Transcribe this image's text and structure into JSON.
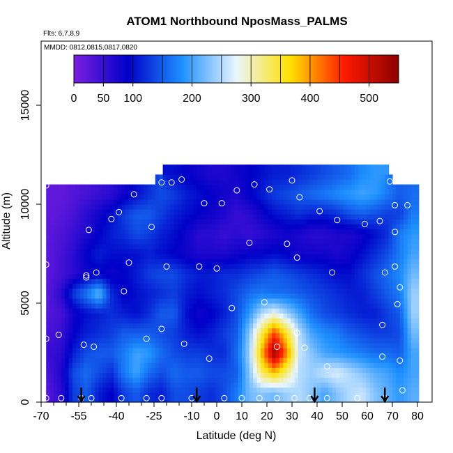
{
  "chart_data": {
    "type": "heatmap",
    "title": "ATOM1 Northbound NposMass_PALMS",
    "subtitle_flights": "Flts: 6,7,8,9",
    "subtitle_dates": "MMDD: 0812,0815,0817,0820",
    "xlabel": "Latitude (deg N)",
    "ylabel": "Altitude (m)",
    "xlim": [
      -70,
      80
    ],
    "ylim": [
      0,
      17500
    ],
    "x_ticks": [
      -70,
      -55,
      -40,
      -25,
      -10,
      0,
      10,
      20,
      30,
      40,
      50,
      60,
      70,
      80
    ],
    "x_tick_labels": [
      "-70",
      "-55",
      "-40",
      "-25",
      "-10",
      "0",
      "10",
      "20",
      "30",
      "40",
      "50",
      "60",
      "70",
      "80"
    ],
    "x_minor_ticks": [
      -65,
      -60,
      -50,
      -45,
      -35,
      -30,
      -20,
      -15,
      -5
    ],
    "y_ticks": [
      0,
      5000,
      10000,
      15000
    ],
    "y_tick_labels": [
      "0",
      "5000",
      "10000",
      "15000"
    ],
    "colorbar": {
      "range": [
        0,
        550
      ],
      "ticks": [
        0,
        50,
        100,
        200,
        300,
        400,
        500
      ],
      "tick_labels": [
        "0",
        "50",
        "100",
        "200",
        "300",
        "400",
        "500"
      ],
      "stops": [
        "#7b1fe0",
        "#0000c8",
        "#1e90ff",
        "#eaf6ff",
        "#ffe100",
        "#ff1a00",
        "#8b0000"
      ]
    },
    "value_grid": {
      "lat": [
        -67,
        -62,
        -57,
        -52,
        -47,
        -42,
        -37,
        -32,
        -27,
        -22,
        -17,
        -12,
        -7,
        -2,
        3,
        8,
        13,
        18,
        23,
        28,
        33,
        38,
        43,
        48,
        53,
        58,
        63,
        68,
        73,
        78
      ],
      "alt": [
        500,
        1500,
        2500,
        3500,
        4500,
        5500,
        6500,
        7500,
        8500,
        9500,
        10500,
        11500
      ],
      "values": [
        [
          30,
          60,
          130,
          150,
          110,
          90,
          130,
          150,
          120,
          110,
          140,
          140,
          130,
          120,
          140,
          170,
          220,
          230,
          220,
          240,
          250,
          230,
          200,
          230,
          250,
          260,
          230,
          210,
          190,
          210
        ],
        [
          40,
          70,
          140,
          160,
          140,
          120,
          170,
          200,
          160,
          140,
          160,
          150,
          150,
          140,
          140,
          150,
          230,
          330,
          380,
          320,
          250,
          240,
          260,
          270,
          250,
          230,
          210,
          200,
          180,
          200
        ],
        [
          50,
          60,
          110,
          140,
          150,
          150,
          170,
          200,
          190,
          160,
          140,
          130,
          130,
          120,
          120,
          160,
          240,
          390,
          540,
          410,
          260,
          230,
          200,
          190,
          180,
          170,
          160,
          160,
          150,
          200
        ],
        [
          40,
          50,
          90,
          110,
          120,
          130,
          150,
          150,
          150,
          140,
          130,
          110,
          100,
          110,
          130,
          150,
          230,
          340,
          440,
          350,
          250,
          200,
          180,
          170,
          150,
          140,
          130,
          130,
          140,
          220
        ],
        [
          30,
          40,
          80,
          100,
          110,
          120,
          110,
          100,
          120,
          150,
          150,
          100,
          80,
          90,
          110,
          140,
          190,
          250,
          280,
          240,
          200,
          160,
          140,
          130,
          120,
          110,
          110,
          130,
          150,
          240
        ],
        [
          30,
          60,
          130,
          170,
          220,
          120,
          90,
          100,
          110,
          120,
          130,
          110,
          100,
          110,
          120,
          140,
          160,
          170,
          160,
          160,
          150,
          140,
          130,
          120,
          110,
          110,
          130,
          150,
          170,
          240
        ],
        [
          25,
          40,
          60,
          80,
          90,
          80,
          90,
          110,
          130,
          140,
          140,
          120,
          110,
          110,
          120,
          120,
          130,
          140,
          150,
          140,
          130,
          120,
          110,
          100,
          100,
          120,
          140,
          160,
          180,
          220
        ],
        [
          25,
          40,
          60,
          90,
          110,
          100,
          100,
          100,
          110,
          100,
          90,
          80,
          70,
          70,
          70,
          80,
          90,
          90,
          100,
          90,
          80,
          80,
          80,
          70,
          80,
          100,
          120,
          140,
          170,
          200
        ],
        [
          25,
          35,
          50,
          70,
          90,
          110,
          120,
          140,
          130,
          110,
          100,
          80,
          60,
          60,
          50,
          60,
          50,
          60,
          70,
          80,
          70,
          60,
          60,
          70,
          70,
          80,
          100,
          120,
          170,
          190
        ],
        [
          20,
          25,
          40,
          60,
          80,
          100,
          130,
          150,
          150,
          130,
          110,
          100,
          90,
          80,
          70,
          50,
          60,
          80,
          100,
          110,
          120,
          110,
          110,
          120,
          140,
          150,
          140,
          130,
          130,
          170
        ],
        [
          20,
          20,
          30,
          40,
          50,
          60,
          80,
          100,
          120,
          140,
          130,
          110,
          100,
          90,
          80,
          70,
          90,
          110,
          130,
          140,
          150,
          160,
          170,
          180,
          190,
          200,
          190,
          170,
          150,
          160
        ],
        [
          null,
          null,
          null,
          null,
          null,
          null,
          null,
          null,
          null,
          null,
          100,
          90,
          80,
          70,
          70,
          80,
          90,
          100,
          110,
          110,
          120,
          130,
          140,
          150,
          160,
          180,
          190,
          null,
          null,
          null
        ]
      ]
    },
    "sample_points": [
      {
        "lat": -68,
        "alt": 200
      },
      {
        "lat": -62,
        "alt": 200
      },
      {
        "lat": -54,
        "alt": 200
      },
      {
        "lat": -50,
        "alt": 200
      },
      {
        "lat": -38,
        "alt": 200
      },
      {
        "lat": -28,
        "alt": 200
      },
      {
        "lat": -22,
        "alt": 200
      },
      {
        "lat": -10,
        "alt": 200
      },
      {
        "lat": 3,
        "alt": 200
      },
      {
        "lat": 10,
        "alt": 200
      },
      {
        "lat": 17,
        "alt": 200
      },
      {
        "lat": 24,
        "alt": 200
      },
      {
        "lat": 31,
        "alt": 200
      },
      {
        "lat": 37,
        "alt": 200
      },
      {
        "lat": 44,
        "alt": 200
      },
      {
        "lat": 56,
        "alt": 200
      },
      {
        "lat": 67,
        "alt": 200
      },
      {
        "lat": 74,
        "alt": 600
      },
      {
        "lat": -68,
        "alt": 3200
      },
      {
        "lat": -63,
        "alt": 3400
      },
      {
        "lat": -53,
        "alt": 2900
      },
      {
        "lat": -49,
        "alt": 2800
      },
      {
        "lat": -28,
        "alt": 3200
      },
      {
        "lat": -22,
        "alt": 3700
      },
      {
        "lat": -13,
        "alt": 2950
      },
      {
        "lat": -3,
        "alt": 2200
      },
      {
        "lat": 24,
        "alt": 2800
      },
      {
        "lat": 32,
        "alt": 3500
      },
      {
        "lat": 35,
        "alt": 2750
      },
      {
        "lat": 44,
        "alt": 1800
      },
      {
        "lat": 66,
        "alt": 3900
      },
      {
        "lat": 66,
        "alt": 2300
      },
      {
        "lat": 73,
        "alt": 2100
      },
      {
        "lat": -68,
        "alt": 6950
      },
      {
        "lat": -52,
        "alt": 6400
      },
      {
        "lat": -48,
        "alt": 6550
      },
      {
        "lat": -37,
        "alt": 5600
      },
      {
        "lat": -35,
        "alt": 7050
      },
      {
        "lat": -20,
        "alt": 6850
      },
      {
        "lat": -7,
        "alt": 6850
      },
      {
        "lat": 0,
        "alt": 6750
      },
      {
        "lat": 6,
        "alt": 4750
      },
      {
        "lat": 19,
        "alt": 5050
      },
      {
        "lat": 32,
        "alt": 7300
      },
      {
        "lat": 46,
        "alt": 6550
      },
      {
        "lat": 67,
        "alt": 6550
      },
      {
        "lat": 71,
        "alt": 6850
      },
      {
        "lat": 72,
        "alt": 4950
      },
      {
        "lat": 73,
        "alt": 5800
      },
      {
        "lat": -52,
        "alt": 6300
      },
      {
        "lat": -51,
        "alt": 8700
      },
      {
        "lat": -42,
        "alt": 9250
      },
      {
        "lat": -39,
        "alt": 9600
      },
      {
        "lat": -33,
        "alt": 10500
      },
      {
        "lat": -26,
        "alt": 8850
      },
      {
        "lat": -18,
        "alt": 11100
      },
      {
        "lat": -14,
        "alt": 11250
      },
      {
        "lat": -5,
        "alt": 10050
      },
      {
        "lat": 2,
        "alt": 10050
      },
      {
        "lat": 8,
        "alt": 10700
      },
      {
        "lat": 13,
        "alt": 8050
      },
      {
        "lat": 15,
        "alt": 11000
      },
      {
        "lat": 21,
        "alt": 10750
      },
      {
        "lat": 28,
        "alt": 8000
      },
      {
        "lat": 33,
        "alt": 10350
      },
      {
        "lat": 41,
        "alt": 9650
      },
      {
        "lat": 48,
        "alt": 9200
      },
      {
        "lat": 59,
        "alt": 9000
      },
      {
        "lat": 65,
        "alt": 9150
      },
      {
        "lat": 69,
        "alt": 11150
      },
      {
        "lat": 71,
        "alt": 9950
      },
      {
        "lat": 71,
        "alt": 8600
      },
      {
        "lat": 76,
        "alt": 9950
      },
      {
        "lat": -68,
        "alt": 10950
      },
      {
        "lat": -22,
        "alt": 11100
      },
      {
        "lat": 30,
        "alt": 11200
      }
    ],
    "arrow_latitudes": [
      -54,
      -8,
      39,
      67
    ]
  }
}
